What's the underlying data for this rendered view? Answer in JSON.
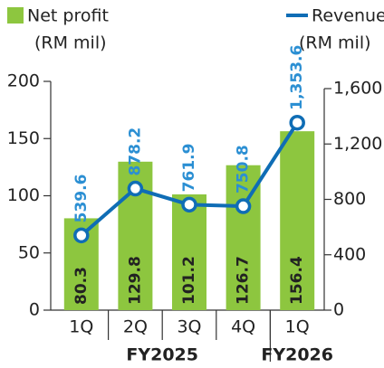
{
  "chart_data": {
    "type": "bar_line",
    "categories": [
      "1Q",
      "2Q",
      "3Q",
      "4Q",
      "1Q"
    ],
    "groups": [
      {
        "label": "FY2025",
        "count": 4
      },
      {
        "label": "FY2026",
        "count": 1
      }
    ],
    "ylabel": "(RM mil)",
    "y2label": "(RM mil)",
    "series": [
      {
        "name": "Net profit",
        "type": "bar",
        "color": "#8dc63f",
        "values": [
          80.3,
          129.8,
          101.2,
          126.7,
          156.4
        ]
      },
      {
        "name": "Revenue",
        "type": "line",
        "axis": "y2",
        "color": "#0f6db5",
        "values": [
          539.6,
          878.2,
          761.9,
          750.8,
          1353.6
        ],
        "value_labels": [
          "539.6",
          "878.2",
          "761.9",
          "750.8",
          "1,353.6"
        ]
      }
    ],
    "ylim": [
      0,
      200
    ],
    "yticks": [
      0,
      50,
      100,
      150,
      200
    ],
    "y2lim": [
      0,
      1600
    ],
    "y2ticks": [
      0,
      400,
      800,
      {
        "value": 1200,
        "label": "1,200"
      },
      {
        "value": 1600,
        "label": "1,600"
      }
    ]
  }
}
